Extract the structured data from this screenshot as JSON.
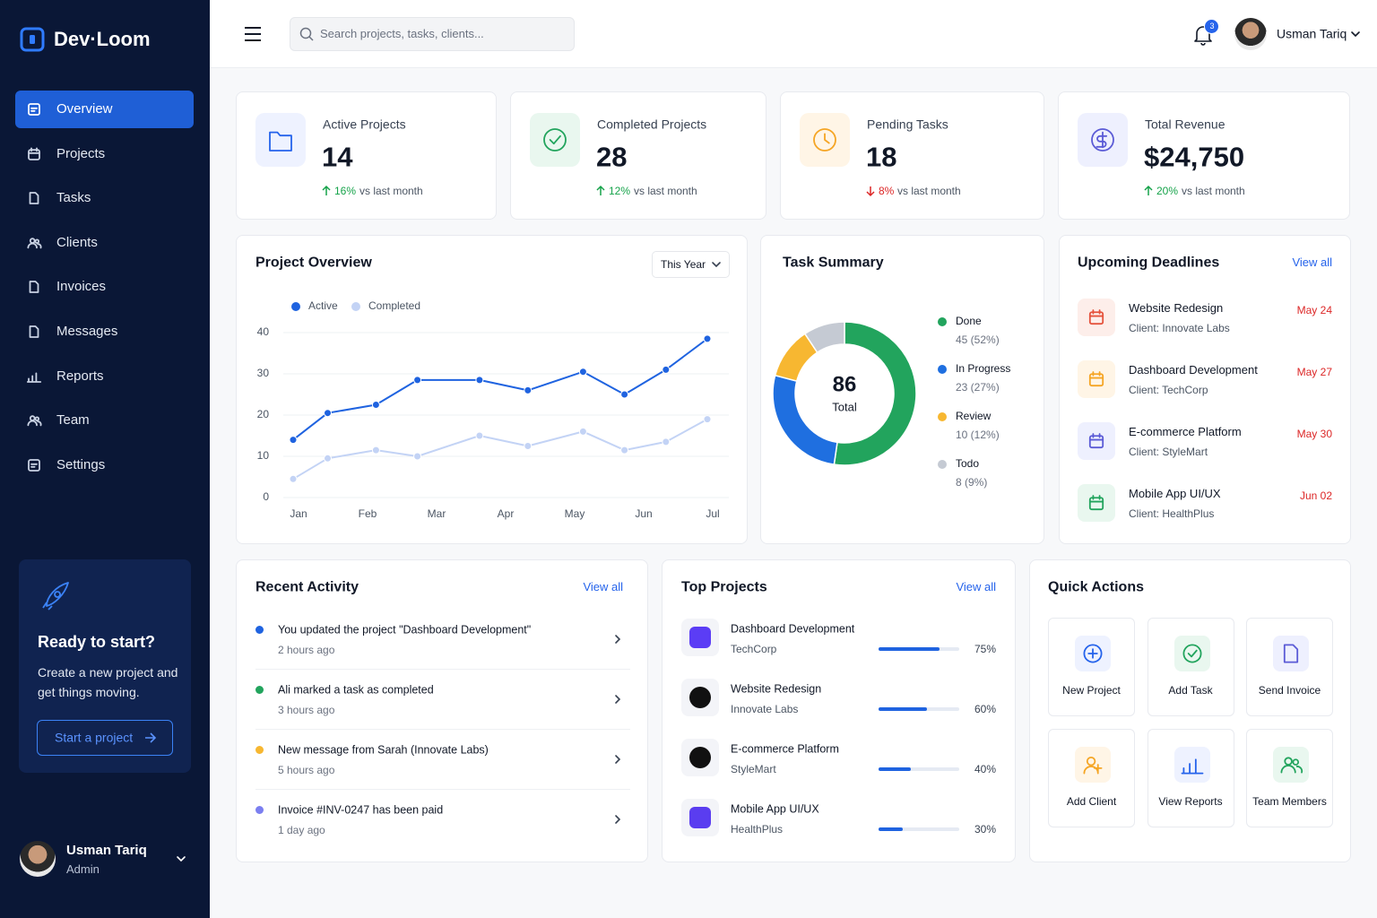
{
  "sidebar": {
    "brand": "Dev·Loom",
    "nav": [
      "Overview",
      "Projects",
      "Tasks",
      "Clients",
      "Invoices",
      "Messages",
      "Reports",
      "Team",
      "Settings"
    ],
    "active": 0,
    "promo": {
      "title": "Ready to start?",
      "text": "Create a new project and get things moving.",
      "button": "Start a project"
    },
    "user": {
      "name": "Usman Tariq",
      "role": "Admin"
    }
  },
  "topbar": {
    "search_placeholder": "Search projects, tasks, clients...",
    "notifications": 3,
    "user": "Usman Tariq"
  },
  "stats": [
    {
      "label": "Active Projects",
      "value": 14,
      "change": "16%",
      "trend": "up",
      "note": "vs last month",
      "color": "#2563eb"
    },
    {
      "label": "Completed Projects",
      "value": 28,
      "change": "12%",
      "trend": "up",
      "note": "vs last month",
      "color": "#22a45d"
    },
    {
      "label": "Pending Tasks",
      "value": 18,
      "change": "8%",
      "trend": "down",
      "note": "vs last month",
      "color": "#f5a524"
    },
    {
      "label": "Total Revenue",
      "value": "$24,750",
      "change": "20%",
      "trend": "up",
      "note": "vs last month",
      "color": "#5b5bd6"
    }
  ],
  "project_overview": {
    "title": "Project Overview",
    "filter": "This Year",
    "chart": {
      "type": "line",
      "x": [
        0,
        0.5,
        1.2,
        1.8,
        2.7,
        3.4,
        4.2,
        4.8,
        5.4,
        6
      ],
      "xlim": [
        0,
        6
      ],
      "xticks": [
        {
          "value": 0,
          "label": "Jan"
        },
        {
          "value": 1,
          "label": "Feb"
        },
        {
          "value": 2,
          "label": "Mar"
        },
        {
          "value": 3,
          "label": "Apr"
        },
        {
          "value": 4,
          "label": "May"
        },
        {
          "value": 5,
          "label": "Jun"
        },
        {
          "value": 6,
          "label": "Jul"
        }
      ],
      "ylim": [
        0,
        40
      ],
      "yticks": [
        0,
        10,
        20,
        30,
        40
      ],
      "grid": true,
      "series": [
        {
          "name": "Active",
          "color": "#1f63e0",
          "values": [
            14,
            20.5,
            22.5,
            28.5,
            28.5,
            26,
            30.5,
            25,
            31,
            38.5
          ]
        },
        {
          "name": "Completed",
          "color": "#c3d3f5",
          "values": [
            4.5,
            9.5,
            11.5,
            10,
            15,
            12.5,
            16,
            11.5,
            13.5,
            19
          ]
        }
      ]
    }
  },
  "task_summary": {
    "title": "Task Summary",
    "chart": {
      "type": "pie",
      "total": 86,
      "total_label": "Total",
      "categories": [
        "Done",
        "In Progress",
        "Review",
        "Todo"
      ],
      "values": [
        45,
        23,
        10,
        8
      ],
      "value_labels": [
        "45 (52%)",
        "23 (27%)",
        "10 (12%)",
        "8 (9%)"
      ],
      "colors": [
        "#22a45d",
        "#1f6fe0",
        "#f7b731",
        "#c5cad3"
      ]
    }
  },
  "deadlines": {
    "title": "Upcoming Deadlines",
    "link": "View all",
    "items": [
      {
        "title": "Website Redesign",
        "client": "Client: Innovate Labs",
        "date": "May 24",
        "color": "#e5533d"
      },
      {
        "title": "Dashboard Development",
        "client": "Client: TechCorp",
        "date": "May 27",
        "color": "#f5a524"
      },
      {
        "title": "E-commerce Platform",
        "client": "Client: StyleMart",
        "date": "May 30",
        "color": "#5b5bd6"
      },
      {
        "title": "Mobile App UI/UX",
        "client": "Client: HealthPlus",
        "date": "Jun 02",
        "color": "#22a45d"
      }
    ]
  },
  "activity": {
    "title": "Recent Activity",
    "link": "View all",
    "items": [
      {
        "text": "You updated the project \"Dashboard Development\"",
        "time": "2 hours ago",
        "color": "#1f63e0"
      },
      {
        "text": "Ali marked a task as completed",
        "time": "3 hours ago",
        "color": "#22a45d"
      },
      {
        "text": "New message from Sarah (Innovate Labs)",
        "time": "5 hours ago",
        "color": "#f7b731"
      },
      {
        "text": "Invoice #INV-0247 has been paid",
        "time": "1 day ago",
        "color": "#7b7ff0"
      }
    ]
  },
  "top_projects": {
    "title": "Top Projects",
    "link": "View all",
    "items": [
      {
        "name": "Dashboard Development",
        "client": "TechCorp",
        "progress": 75,
        "progress_label": "75%",
        "color": "#5b3df5"
      },
      {
        "name": "Website Redesign",
        "client": "Innovate Labs",
        "progress": 60,
        "progress_label": "60%",
        "color": "#111111"
      },
      {
        "name": "E-commerce Platform",
        "client": "StyleMart",
        "progress": 40,
        "progress_label": "40%",
        "color": "#111111"
      },
      {
        "name": "Mobile App UI/UX",
        "client": "HealthPlus",
        "progress": 30,
        "progress_label": "30%",
        "color": "#5a3df0"
      }
    ]
  },
  "quick_actions": {
    "title": "Quick Actions",
    "items": [
      {
        "label": "New Project",
        "color": "#2563eb"
      },
      {
        "label": "Add Task",
        "color": "#22a45d"
      },
      {
        "label": "Send Invoice",
        "color": "#5b5bd6"
      },
      {
        "label": "Add Client",
        "color": "#f5a524"
      },
      {
        "label": "View Reports",
        "color": "#2563eb"
      },
      {
        "label": "Team Members",
        "color": "#22a45d"
      }
    ]
  }
}
